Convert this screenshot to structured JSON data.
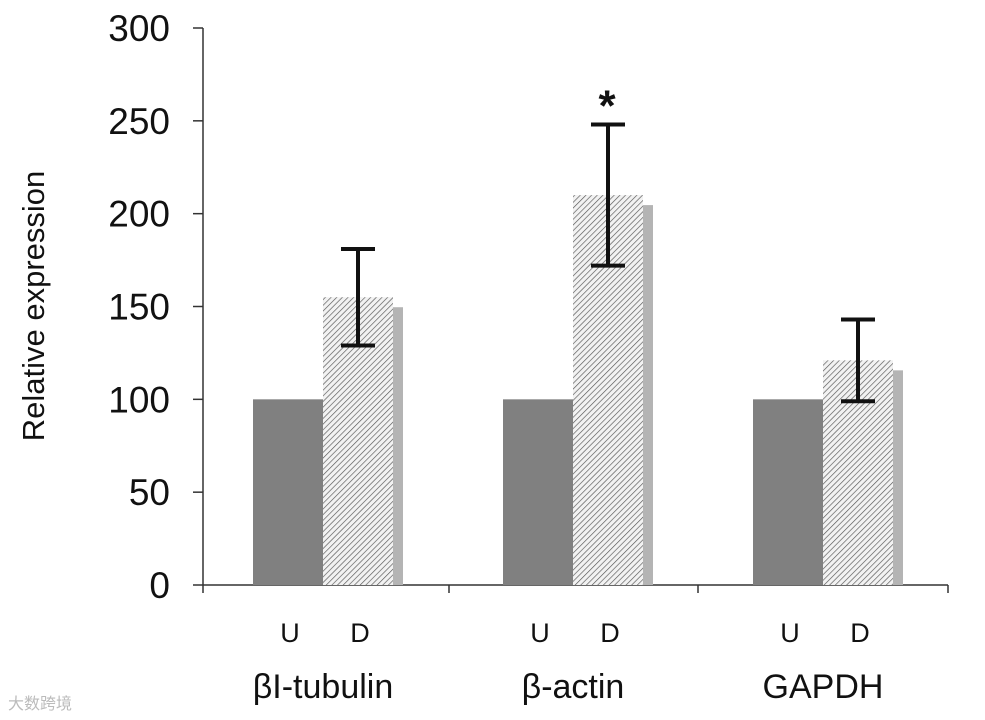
{
  "chart_data": {
    "type": "bar",
    "title": "",
    "xlabel": "",
    "ylabel": "Relative expression",
    "ylim": [
      0,
      300
    ],
    "yticks": [
      0,
      50,
      100,
      150,
      200,
      250,
      300
    ],
    "grid": false,
    "categories": [
      "βI-tubulin",
      "β-actin",
      "GAPDH"
    ],
    "subcategories": [
      "U",
      "D"
    ],
    "series": [
      {
        "values": [
          100,
          100,
          100
        ],
        "color": "#808080"
      },
      {
        "values": [
          155,
          210,
          121
        ],
        "error": [
          26,
          38,
          22
        ],
        "pattern": "hatched",
        "color": "#aaaaaa"
      }
    ],
    "annotations": [
      {
        "category": "β-actin",
        "subcategory": "D",
        "text": "*"
      }
    ]
  },
  "watermark": "大数跨境"
}
